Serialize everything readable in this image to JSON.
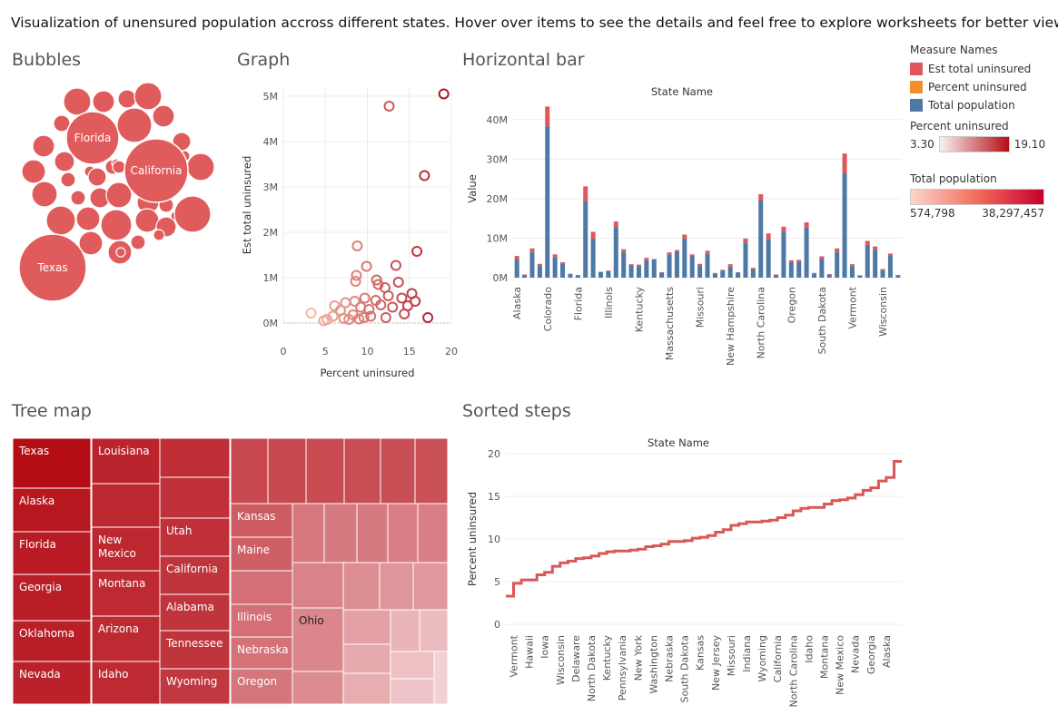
{
  "banner": "Visualization of unensured population accross different states. Hover over items to see the details and feel free to explore worksheets for better views.",
  "sheets": {
    "bubbles": "Bubbles",
    "graph": "Graph",
    "hbar": "Horizontal bar",
    "treemap": "Tree map",
    "steps": "Sorted steps"
  },
  "legend": {
    "measure_title": "Measure Names",
    "measures": [
      {
        "label": "Est total uninsured",
        "color": "#e15759"
      },
      {
        "label": "Percent uninsured",
        "color": "#f28e2b"
      },
      {
        "label": "Total population",
        "color": "#4e79a7"
      }
    ],
    "pct_title": "Percent uninsured",
    "pct_min": "3.30",
    "pct_max": "19.10",
    "pop_title": "Total population",
    "pop_min": "574,798",
    "pop_max": "38,297,457"
  },
  "colors": {
    "bubble": "#e05c5c",
    "bar_total": "#4e79a7",
    "bar_unins": "#e15759",
    "step_line": "#d95858",
    "tree_dark": "#b40d16",
    "tree_light": "#f2d0d3",
    "scatter_light": "#f6b8a6",
    "scatter_dark": "#b0172a"
  },
  "chart_data": [
    {
      "type": "scatter",
      "name": "Bubbles",
      "labels": [
        "Florida",
        "California",
        "Texas"
      ]
    },
    {
      "type": "scatter",
      "name": "Graph",
      "xlabel": "Percent uninsured",
      "ylabel": "Est total uninsured",
      "xticks": [
        "0",
        "5",
        "10",
        "15",
        "20"
      ],
      "yticks": [
        "0M",
        "1M",
        "2M",
        "3M",
        "4M",
        "5M"
      ],
      "xlim": [
        0,
        20
      ],
      "ylim": [
        0,
        5.2
      ],
      "points": [
        {
          "x": 19.1,
          "y": 5.05
        },
        {
          "x": 12.6,
          "y": 4.78
        },
        {
          "x": 16.8,
          "y": 3.25
        },
        {
          "x": 8.8,
          "y": 1.7
        },
        {
          "x": 15.9,
          "y": 1.58
        },
        {
          "x": 13.4,
          "y": 1.27
        },
        {
          "x": 9.9,
          "y": 1.25
        },
        {
          "x": 8.7,
          "y": 1.05
        },
        {
          "x": 8.6,
          "y": 0.92
        },
        {
          "x": 11.1,
          "y": 0.95
        },
        {
          "x": 11.3,
          "y": 0.85
        },
        {
          "x": 12.1,
          "y": 0.78
        },
        {
          "x": 13.7,
          "y": 0.9
        },
        {
          "x": 15.3,
          "y": 0.65
        },
        {
          "x": 12.5,
          "y": 0.6
        },
        {
          "x": 9.7,
          "y": 0.55
        },
        {
          "x": 11.0,
          "y": 0.5
        },
        {
          "x": 14.1,
          "y": 0.55
        },
        {
          "x": 15.7,
          "y": 0.48
        },
        {
          "x": 8.5,
          "y": 0.48
        },
        {
          "x": 7.4,
          "y": 0.45
        },
        {
          "x": 9.2,
          "y": 0.35
        },
        {
          "x": 10.2,
          "y": 0.3
        },
        {
          "x": 11.6,
          "y": 0.4
        },
        {
          "x": 13.0,
          "y": 0.35
        },
        {
          "x": 14.8,
          "y": 0.38
        },
        {
          "x": 6.1,
          "y": 0.38
        },
        {
          "x": 6.8,
          "y": 0.28
        },
        {
          "x": 3.3,
          "y": 0.22
        },
        {
          "x": 5.9,
          "y": 0.15
        },
        {
          "x": 8.3,
          "y": 0.18
        },
        {
          "x": 9.6,
          "y": 0.12
        },
        {
          "x": 10.4,
          "y": 0.15
        },
        {
          "x": 12.2,
          "y": 0.12
        },
        {
          "x": 14.4,
          "y": 0.2
        },
        {
          "x": 17.2,
          "y": 0.12
        },
        {
          "x": 7.8,
          "y": 0.08
        },
        {
          "x": 4.8,
          "y": 0.05
        },
        {
          "x": 5.2,
          "y": 0.08
        },
        {
          "x": 7.2,
          "y": 0.1
        },
        {
          "x": 9.0,
          "y": 0.09
        }
      ]
    },
    {
      "type": "bar",
      "name": "Horizontal bar",
      "title": "State Name",
      "ylabel": "Value",
      "yticks": [
        "0M",
        "10M",
        "20M",
        "30M",
        "40M"
      ],
      "ylim": [
        0,
        45
      ],
      "xticks": [
        "Alaska",
        "Colorado",
        "Florida",
        "Illinois",
        "Kentucky",
        "Massachusetts",
        "Missouri",
        "New Hampshire",
        "North Carolina",
        "Oregon",
        "South Dakota",
        "Vermont",
        "Wisconsin"
      ],
      "series": [
        {
          "name": "Total population",
          "values": [
            4.8,
            0.7,
            6.5,
            3.0,
            38.3,
            5.2,
            3.6,
            0.9,
            0.6,
            19.3,
            9.9,
            1.4,
            1.6,
            12.9,
            6.5,
            3.1,
            2.9,
            4.4,
            4.6,
            1.3,
            5.9,
            6.7,
            9.9,
            5.4,
            3.0,
            6.0,
            1.0,
            1.8,
            2.8,
            1.3,
            8.9,
            2.1,
            19.6,
            9.8,
            0.7,
            11.6,
            3.8,
            3.9,
            12.8,
            1.1,
            4.8,
            0.8,
            6.5,
            26.4,
            2.9,
            0.6,
            8.3,
            7.0,
            1.9,
            5.7,
            0.6
          ]
        },
        {
          "name": "Est total uninsured",
          "values": [
            0.7,
            0.1,
            0.9,
            0.5,
            5.0,
            0.7,
            0.3,
            0.1,
            0.1,
            3.8,
            1.7,
            0.1,
            0.2,
            1.3,
            0.7,
            0.3,
            0.4,
            0.6,
            0.1,
            0.1,
            0.5,
            0.3,
            1.0,
            0.5,
            0.5,
            0.8,
            0.2,
            0.2,
            0.6,
            0.1,
            1.0,
            0.4,
            1.5,
            1.4,
            0.1,
            1.3,
            0.6,
            0.6,
            1.2,
            0.1,
            0.6,
            0.1,
            0.9,
            5.0,
            0.5,
            0.0,
            1.0,
            0.9,
            0.3,
            0.4,
            0.1
          ]
        }
      ]
    },
    {
      "type": "heatmap",
      "name": "Tree map",
      "labels": [
        "Texas",
        "Alaska",
        "Florida",
        "Georgia",
        "Oklahoma",
        "Nevada",
        "Louisiana",
        "New Mexico",
        "Montana",
        "Arizona",
        "Idaho",
        "Utah",
        "California",
        "Alabama",
        "Tennessee",
        "Wyoming",
        "Kansas",
        "Maine",
        "Illinois",
        "Nebraska",
        "Oregon",
        "Ohio"
      ]
    },
    {
      "type": "line",
      "name": "Sorted steps",
      "title": "State Name",
      "ylabel": "Percent uninsured",
      "yticks": [
        "0",
        "5",
        "10",
        "15",
        "20"
      ],
      "ylim": [
        0,
        20
      ],
      "xticks": [
        "Vermont",
        "Hawaii",
        "Iowa",
        "Wisconsin",
        "Delaware",
        "North Dakota",
        "Kentucky",
        "Pennsylvania",
        "New York",
        "Washington",
        "Nebraska",
        "South Dakota",
        "Kansas",
        "New Jersey",
        "Missouri",
        "Indiana",
        "Wyoming",
        "California",
        "North Carolina",
        "Idaho",
        "Montana",
        "New Mexico",
        "Nevada",
        "Georgia",
        "Alaska"
      ],
      "values": [
        3.3,
        4.8,
        5.2,
        5.2,
        5.8,
        6.1,
        6.8,
        7.2,
        7.4,
        7.7,
        7.8,
        8.0,
        8.3,
        8.5,
        8.6,
        8.6,
        8.7,
        8.8,
        9.1,
        9.2,
        9.4,
        9.7,
        9.7,
        9.8,
        10.1,
        10.2,
        10.4,
        10.8,
        11.1,
        11.6,
        11.8,
        12.0,
        12.0,
        12.1,
        12.2,
        12.5,
        12.8,
        13.3,
        13.6,
        13.7,
        13.7,
        14.1,
        14.5,
        14.6,
        14.8,
        15.2,
        15.7,
        16.0,
        16.8,
        17.2,
        19.1
      ]
    }
  ]
}
